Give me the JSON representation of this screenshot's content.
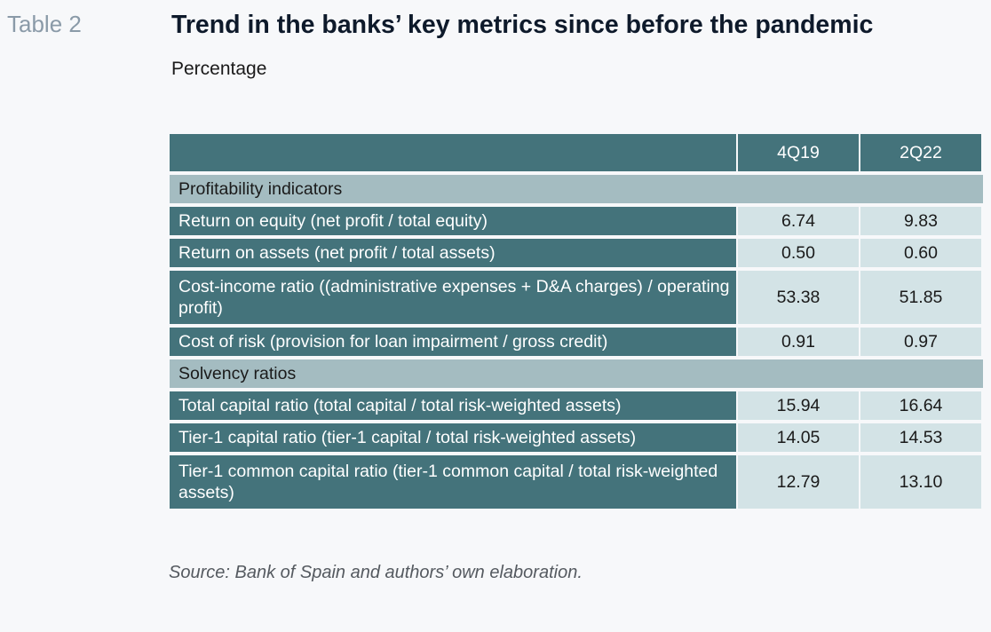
{
  "table_label": "Table 2",
  "title": "Trend in the banks’ key metrics since before the pandemic",
  "subtitle": "Percentage",
  "table": {
    "columns": [
      "4Q19",
      "2Q22"
    ],
    "sections": [
      {
        "name": "Profitability indicators",
        "rows": [
          {
            "label": "Return on equity (net profit / total equity)",
            "values": [
              "6.74",
              "9.83"
            ]
          },
          {
            "label": "Return on assets (net profit / total assets)",
            "values": [
              "0.50",
              "0.60"
            ]
          },
          {
            "label": "Cost-income ratio ((administrative expenses + D&A charges) / operating profit)",
            "values": [
              "53.38",
              "51.85"
            ]
          },
          {
            "label": "Cost of risk (provision for loan impairment / gross credit)",
            "values": [
              "0.91",
              "0.97"
            ]
          }
        ]
      },
      {
        "name": "Solvency ratios",
        "rows": [
          {
            "label": "Total capital ratio (total capital / total risk-weighted assets)",
            "values": [
              "15.94",
              "16.64"
            ]
          },
          {
            "label": "Tier-1 capital ratio (tier-1 capital / total risk-weighted assets)",
            "values": [
              "14.05",
              "14.53"
            ]
          },
          {
            "label": "Tier-1 common capital ratio (tier-1 common capital / total risk-weighted assets)",
            "values": [
              "12.79",
              "13.10"
            ]
          }
        ]
      }
    ]
  },
  "source": "Source: Bank of Spain and authors’ own elaboration.",
  "colors": {
    "header_bg": "#44737b",
    "section_bg": "#a4bcc1",
    "value_bg": "#d3e3e6"
  }
}
